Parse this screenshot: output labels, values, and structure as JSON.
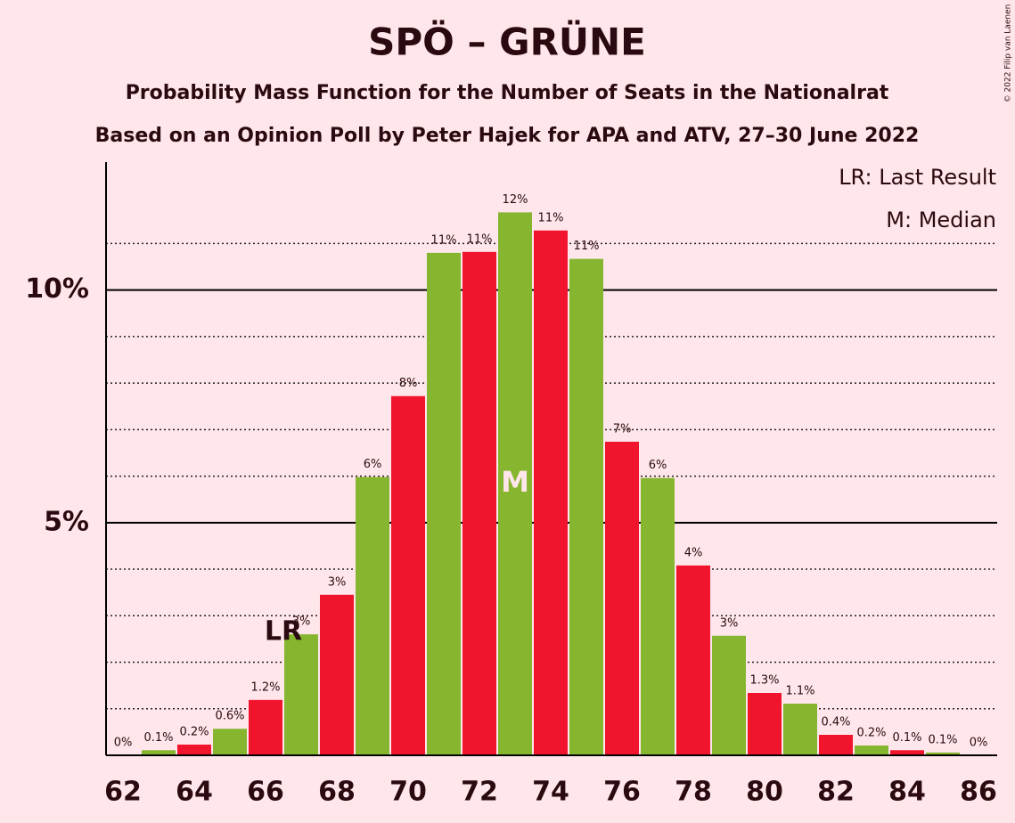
{
  "chart_data": {
    "type": "bar",
    "title": "SPÖ – GRÜNE",
    "subtitle": [
      "Probability Mass Function for the Number of Seats in the Nationalrat",
      "Based on an Opinion Poll by Peter Hajek for APA and ATV, 27–30 June 2022"
    ],
    "legend": [
      "LR: Last Result",
      "M: Median"
    ],
    "copyright": "© 2022 Filip van Laenen",
    "categories": [
      62,
      null,
      64,
      null,
      66,
      null,
      68,
      null,
      70,
      null,
      72,
      null,
      74,
      null,
      76,
      null,
      78,
      null,
      80,
      null,
      82,
      null,
      84,
      null,
      86
    ],
    "values": [
      0,
      0.11,
      0.23,
      0.57,
      1.19,
      2.6,
      3.45,
      5.98,
      7.72,
      10.8,
      10.82,
      11.67,
      11.28,
      10.67,
      6.74,
      5.96,
      4.08,
      2.57,
      1.34,
      1.11,
      0.44,
      0.21,
      0.11,
      0.06,
      0
    ],
    "value_labels": [
      "0%",
      "0.1%",
      "0.2%",
      "0.6%",
      "1.2%",
      "3%",
      "3%",
      "6%",
      "8%",
      "11%",
      "11%",
      "12%",
      "11%",
      "11%",
      "7%",
      "6%",
      "4%",
      "3%",
      "1.3%",
      "1.1%",
      "0.4%",
      "0.2%",
      "0.1%",
      "0.1%",
      "0%"
    ],
    "bar_colors": [
      "#f0142d",
      "#86b52f"
    ],
    "annotations": [
      {
        "text": "LR",
        "x": 66
      },
      {
        "text": "M",
        "x": 73
      }
    ],
    "ylim": [
      0,
      12.75
    ],
    "yticks": [
      {
        "value": 5,
        "label": "5%"
      },
      {
        "value": 10,
        "label": "10%"
      }
    ],
    "minor_yticks": [
      1,
      2,
      3,
      4,
      6,
      7,
      8,
      9,
      11
    ]
  }
}
